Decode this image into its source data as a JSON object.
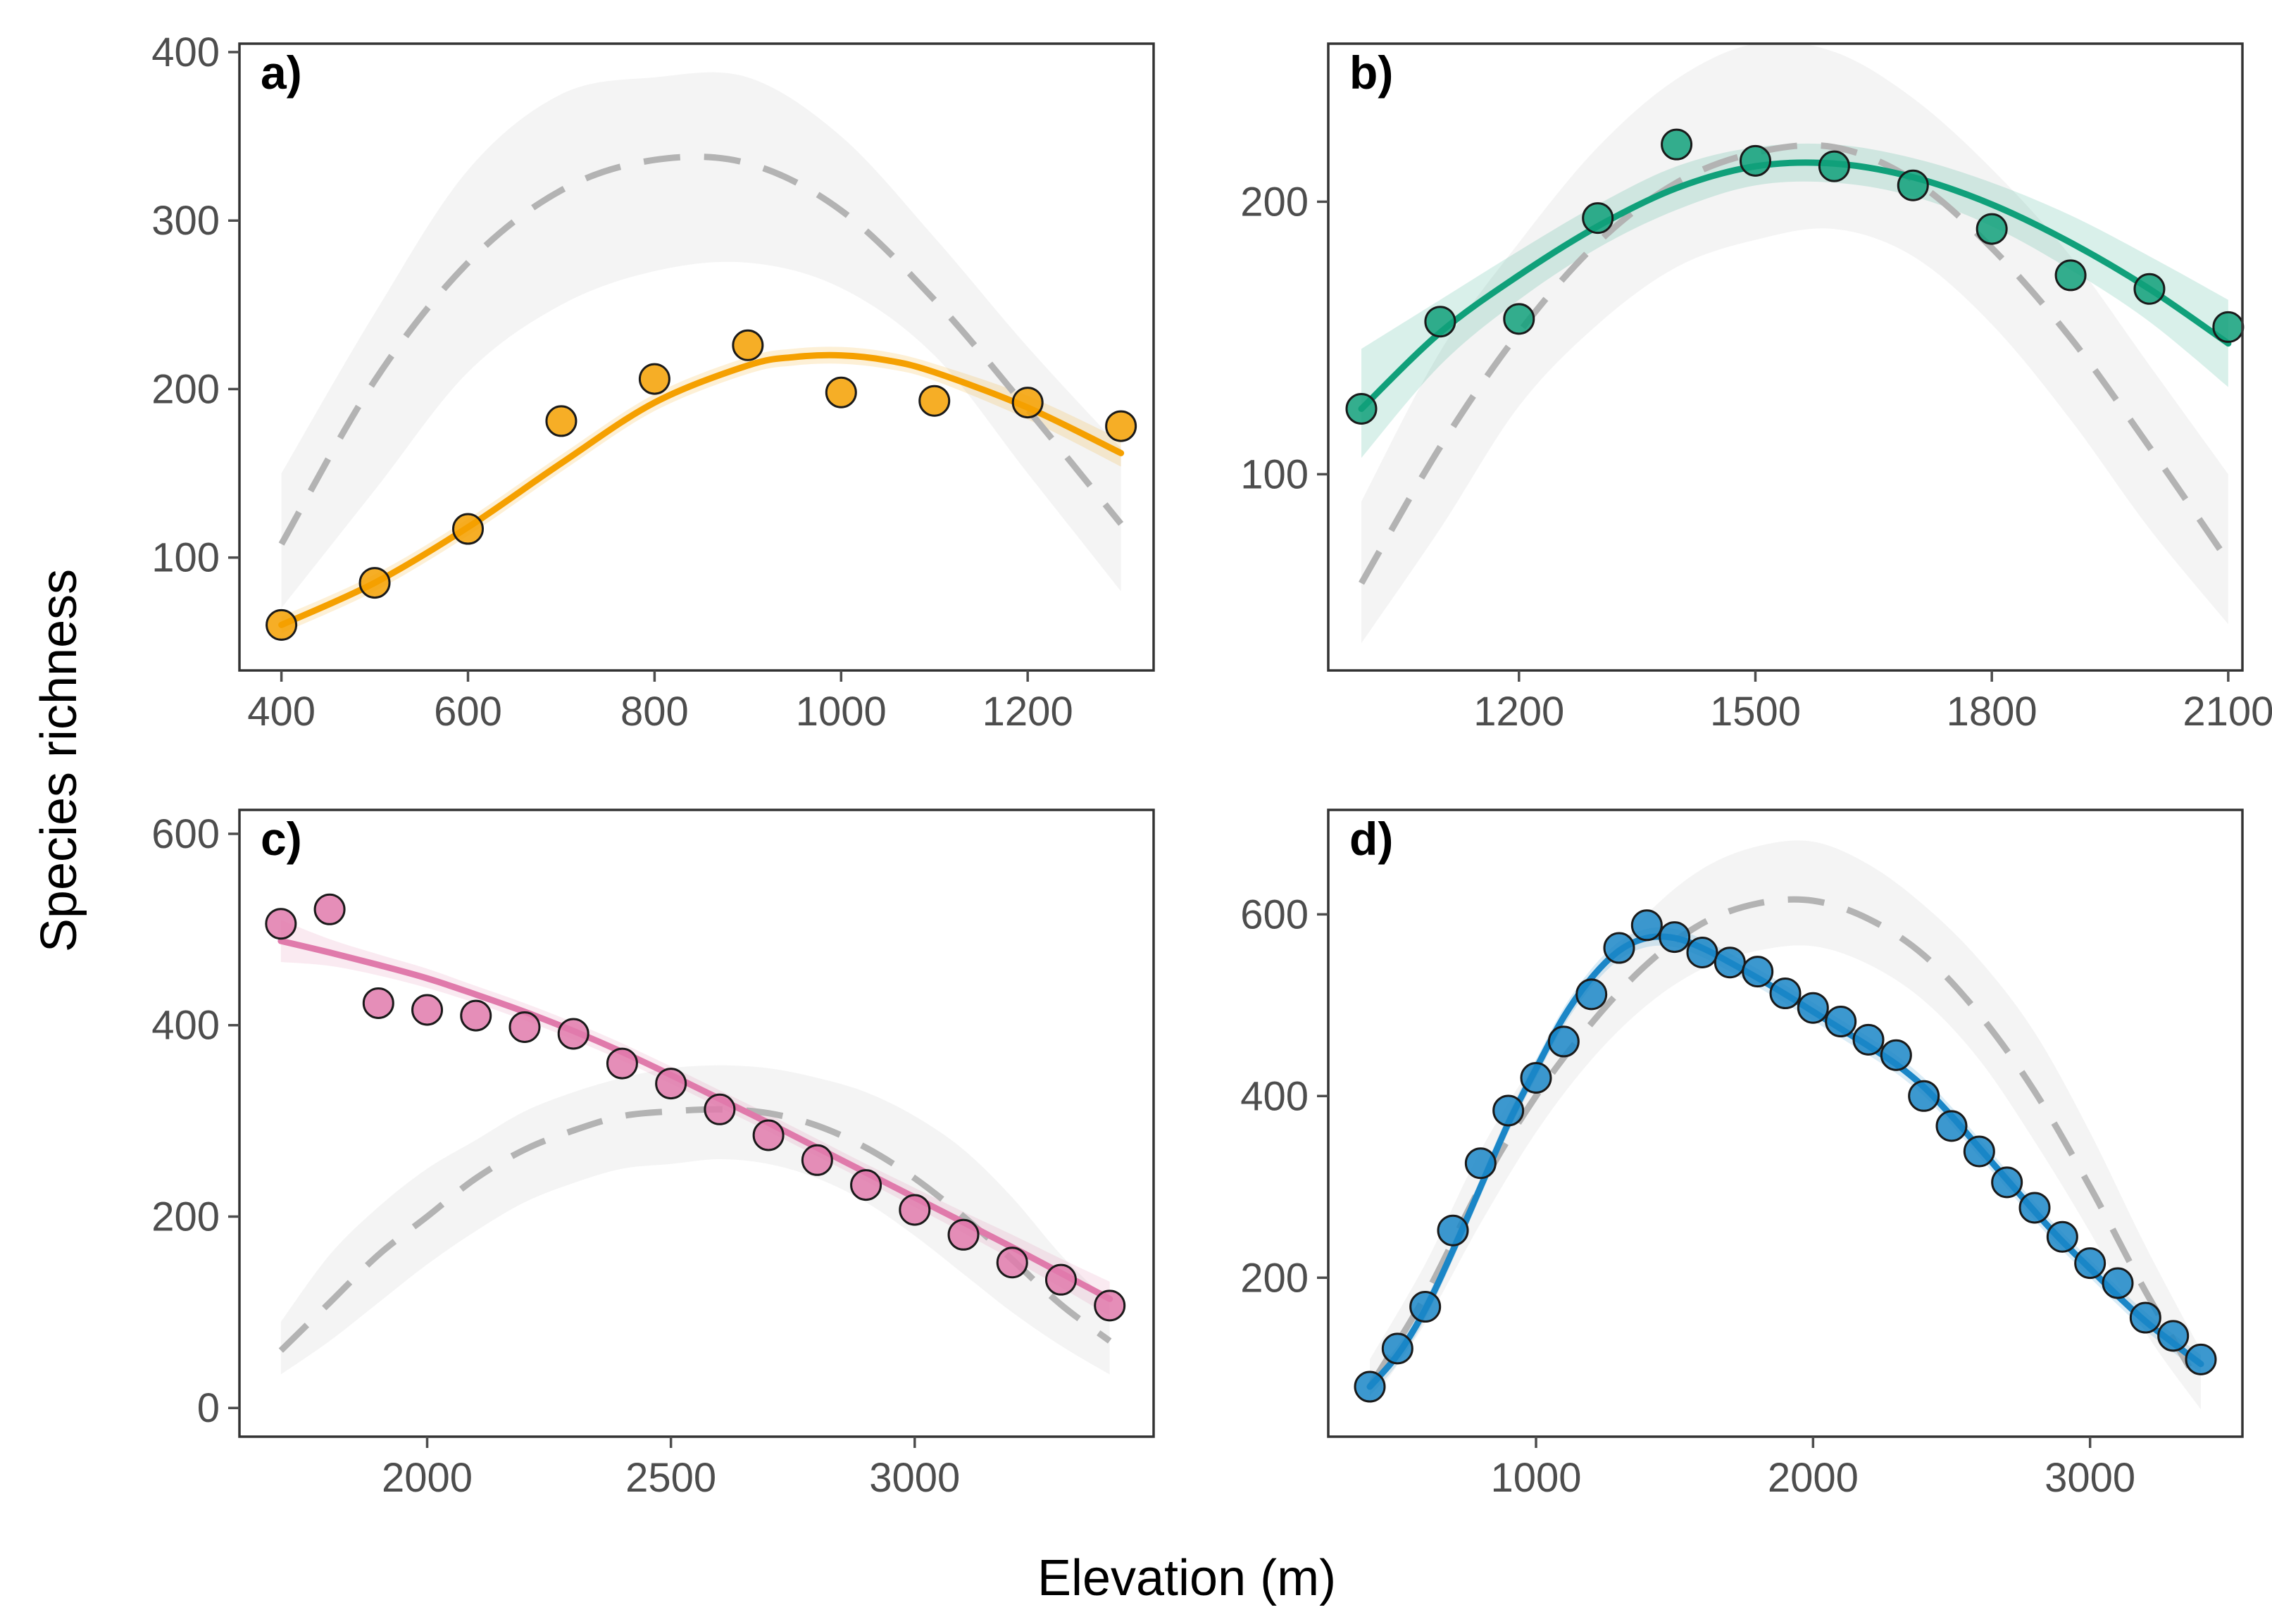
{
  "figure": {
    "xlabel": "Elevation (m)",
    "ylabel": "Species richness"
  },
  "colors": {
    "null_band": "#f4f4f4",
    "null_line": "#b3b3b3",
    "panel_border": "#333333",
    "tick": "#4d4d4d"
  },
  "chart_data": [
    {
      "id": "a",
      "type": "scatter",
      "panel_label": "a)",
      "color": "#f5a000",
      "xlim": [
        355,
        1335
      ],
      "ylim": [
        33,
        405
      ],
      "xticks": [
        400,
        600,
        800,
        1000,
        1200
      ],
      "yticks": [
        100,
        200,
        300,
        400
      ],
      "points": {
        "x": [
          400,
          500,
          600,
          700,
          800,
          900,
          1000,
          1100,
          1200,
          1300
        ],
        "y": [
          60,
          85,
          117,
          181,
          206,
          226,
          198,
          193,
          192,
          178
        ]
      },
      "fit": {
        "x": [
          400,
          500,
          600,
          700,
          800,
          900,
          950,
          1000,
          1050,
          1100,
          1200,
          1300
        ],
        "y": [
          60,
          85,
          118,
          156,
          192,
          214,
          219,
          220,
          217,
          210,
          189,
          162
        ],
        "lower": [
          55,
          80,
          113,
          151,
          187,
          209,
          214,
          215,
          212,
          205,
          182,
          154
        ],
        "upper": [
          65,
          90,
          123,
          161,
          197,
          219,
          224,
          225,
          222,
          215,
          196,
          170
        ]
      },
      "null_model": {
        "x": [
          400,
          500,
          600,
          700,
          800,
          900,
          1000,
          1100,
          1200,
          1300
        ],
        "y": [
          108,
          205,
          275,
          318,
          336,
          334,
          306,
          253,
          188,
          120
        ],
        "lower": [
          70,
          140,
          210,
          250,
          270,
          275,
          260,
          220,
          150,
          80
        ],
        "upper": [
          150,
          245,
          330,
          375,
          385,
          385,
          350,
          290,
          225,
          165
        ]
      }
    },
    {
      "id": "b",
      "type": "scatter",
      "panel_label": "b)",
      "color": "#10a07a",
      "xlim": [
        958,
        2118
      ],
      "ylim": [
        28,
        258
      ],
      "xticks": [
        1200,
        1500,
        1800,
        2100
      ],
      "yticks": [
        100,
        200
      ],
      "points": {
        "x": [
          1000,
          1100,
          1200,
          1300,
          1400,
          1500,
          1600,
          1700,
          1800,
          1900,
          2000,
          2100
        ],
        "y": [
          124,
          156,
          157,
          194,
          221,
          215,
          213,
          206,
          190,
          173,
          168,
          154
        ]
      },
      "fit": {
        "x": [
          1000,
          1100,
          1200,
          1300,
          1400,
          1500,
          1600,
          1700,
          1800,
          1900,
          2000,
          2100
        ],
        "y": [
          124,
          152,
          173,
          191,
          205,
          213,
          214,
          209,
          199,
          185,
          168,
          148
        ],
        "lower": [
          106,
          140,
          164,
          183,
          197,
          206,
          207,
          202,
          191,
          175,
          156,
          132
        ],
        "upper": [
          146,
          164,
          182,
          199,
          213,
          220,
          221,
          216,
          207,
          195,
          180,
          164
        ]
      },
      "null_model": {
        "x": [
          1000,
          1100,
          1200,
          1300,
          1400,
          1500,
          1600,
          1700,
          1800,
          1900,
          2000,
          2100
        ],
        "y": [
          60,
          110,
          152,
          185,
          207,
          218,
          220,
          208,
          183,
          150,
          110,
          68
        ],
        "lower": [
          38,
          80,
          125,
          155,
          176,
          186,
          190,
          180,
          155,
          120,
          80,
          45
        ],
        "upper": [
          90,
          145,
          185,
          220,
          245,
          258,
          255,
          238,
          212,
          180,
          140,
          100
        ]
      }
    },
    {
      "id": "c",
      "type": "scatter",
      "panel_label": "c)",
      "color": "#e07aab",
      "xlim": [
        1615,
        3490
      ],
      "ylim": [
        -30,
        625
      ],
      "xticks": [
        2000,
        2500,
        3000
      ],
      "yticks": [
        0,
        200,
        400,
        600
      ],
      "points": {
        "x": [
          1700,
          1800,
          1900,
          2000,
          2100,
          2200,
          2300,
          2400,
          2500,
          2600,
          2700,
          2800,
          2900,
          3000,
          3100,
          3200,
          3300,
          3400
        ],
        "y": [
          506,
          521,
          423,
          416,
          410,
          398,
          391,
          360,
          339,
          312,
          285,
          259,
          233,
          207,
          181,
          152,
          134,
          107
        ]
      },
      "fit": {
        "x": [
          1700,
          1800,
          1900,
          2000,
          2100,
          2200,
          2300,
          2400,
          2500,
          2600,
          2700,
          2800,
          2900,
          3000,
          3100,
          3200,
          3300,
          3400
        ],
        "y": [
          488,
          476,
          463,
          449,
          432,
          414,
          394,
          372,
          348,
          323,
          298,
          272,
          246,
          220,
          194,
          168,
          141,
          114
        ],
        "lower": [
          466,
          462,
          452,
          439,
          423,
          405,
          385,
          363,
          339,
          314,
          289,
          263,
          237,
          210,
          183,
          155,
          126,
          96
        ],
        "upper": [
          510,
          490,
          474,
          459,
          441,
          423,
          403,
          381,
          357,
          332,
          307,
          281,
          255,
          230,
          205,
          181,
          156,
          132
        ]
      },
      "null_model": {
        "x": [
          1700,
          1800,
          1900,
          2000,
          2100,
          2200,
          2300,
          2400,
          2500,
          2600,
          2700,
          2800,
          2900,
          3000,
          3100,
          3200,
          3300,
          3400
        ],
        "y": [
          60,
          110,
          160,
          200,
          240,
          270,
          290,
          305,
          310,
          312,
          308,
          295,
          272,
          240,
          200,
          155,
          108,
          70
        ],
        "lower": [
          35,
          70,
          110,
          150,
          185,
          215,
          235,
          250,
          255,
          260,
          255,
          240,
          215,
          180,
          140,
          100,
          65,
          35
        ],
        "upper": [
          90,
          160,
          210,
          250,
          280,
          310,
          330,
          345,
          355,
          358,
          355,
          345,
          330,
          305,
          270,
          220,
          160,
          110
        ]
      }
    },
    {
      "id": "d",
      "type": "scatter",
      "panel_label": "d)",
      "color": "#1a86c7",
      "xlim": [
        250,
        3550
      ],
      "ylim": [
        25,
        715
      ],
      "xticks": [
        1000,
        2000,
        3000
      ],
      "yticks": [
        200,
        400,
        600
      ],
      "points": {
        "x": [
          400,
          500,
          600,
          700,
          800,
          900,
          1000,
          1100,
          1200,
          1300,
          1400,
          1500,
          1600,
          1700,
          1800,
          1900,
          2000,
          2100,
          2200,
          2300,
          2400,
          2500,
          2600,
          2700,
          2800,
          2900,
          3000,
          3100,
          3200,
          3300,
          3400
        ],
        "y": [
          80,
          122,
          168,
          252,
          326,
          384,
          420,
          460,
          512,
          563,
          588,
          575,
          558,
          547,
          537,
          513,
          497,
          482,
          462,
          445,
          400,
          367,
          339,
          305,
          277,
          245,
          216,
          194,
          156,
          136,
          110
        ]
      },
      "fit": {
        "x": [
          400,
          500,
          600,
          700,
          800,
          900,
          1000,
          1100,
          1200,
          1300,
          1400,
          1500,
          1600,
          1700,
          1800,
          1900,
          2000,
          2100,
          2200,
          2300,
          2400,
          2500,
          2600,
          2700,
          2800,
          2900,
          3000,
          3100,
          3200,
          3300,
          3400
        ],
        "y": [
          80,
          115,
          165,
          230,
          300,
          370,
          430,
          487,
          530,
          560,
          574,
          574,
          563,
          547,
          530,
          512,
          493,
          474,
          455,
          435,
          410,
          378,
          343,
          308,
          273,
          240,
          210,
          180,
          152,
          128,
          105
        ],
        "lower": [
          70,
          105,
          155,
          220,
          290,
          360,
          420,
          477,
          520,
          550,
          564,
          564,
          553,
          537,
          520,
          502,
          483,
          464,
          445,
          425,
          400,
          368,
          333,
          298,
          263,
          230,
          200,
          170,
          142,
          118,
          95
        ],
        "upper": [
          90,
          125,
          175,
          240,
          310,
          380,
          440,
          497,
          540,
          570,
          584,
          584,
          573,
          557,
          540,
          522,
          503,
          484,
          465,
          445,
          420,
          388,
          353,
          318,
          283,
          250,
          220,
          190,
          162,
          138,
          115
        ]
      },
      "null_model": {
        "x": [
          400,
          600,
          800,
          1000,
          1200,
          1400,
          1600,
          1800,
          2000,
          2200,
          2400,
          2600,
          2800,
          3000,
          3200,
          3400
        ],
        "y": [
          80,
          180,
          300,
          400,
          480,
          545,
          590,
          612,
          615,
          595,
          555,
          490,
          405,
          300,
          185,
          80
        ],
        "lower": [
          60,
          150,
          260,
          360,
          440,
          500,
          540,
          560,
          565,
          545,
          505,
          440,
          350,
          250,
          140,
          55
        ],
        "upper": [
          110,
          215,
          340,
          440,
          525,
          600,
          650,
          675,
          680,
          655,
          610,
          550,
          470,
          360,
          235,
          120
        ]
      }
    }
  ]
}
